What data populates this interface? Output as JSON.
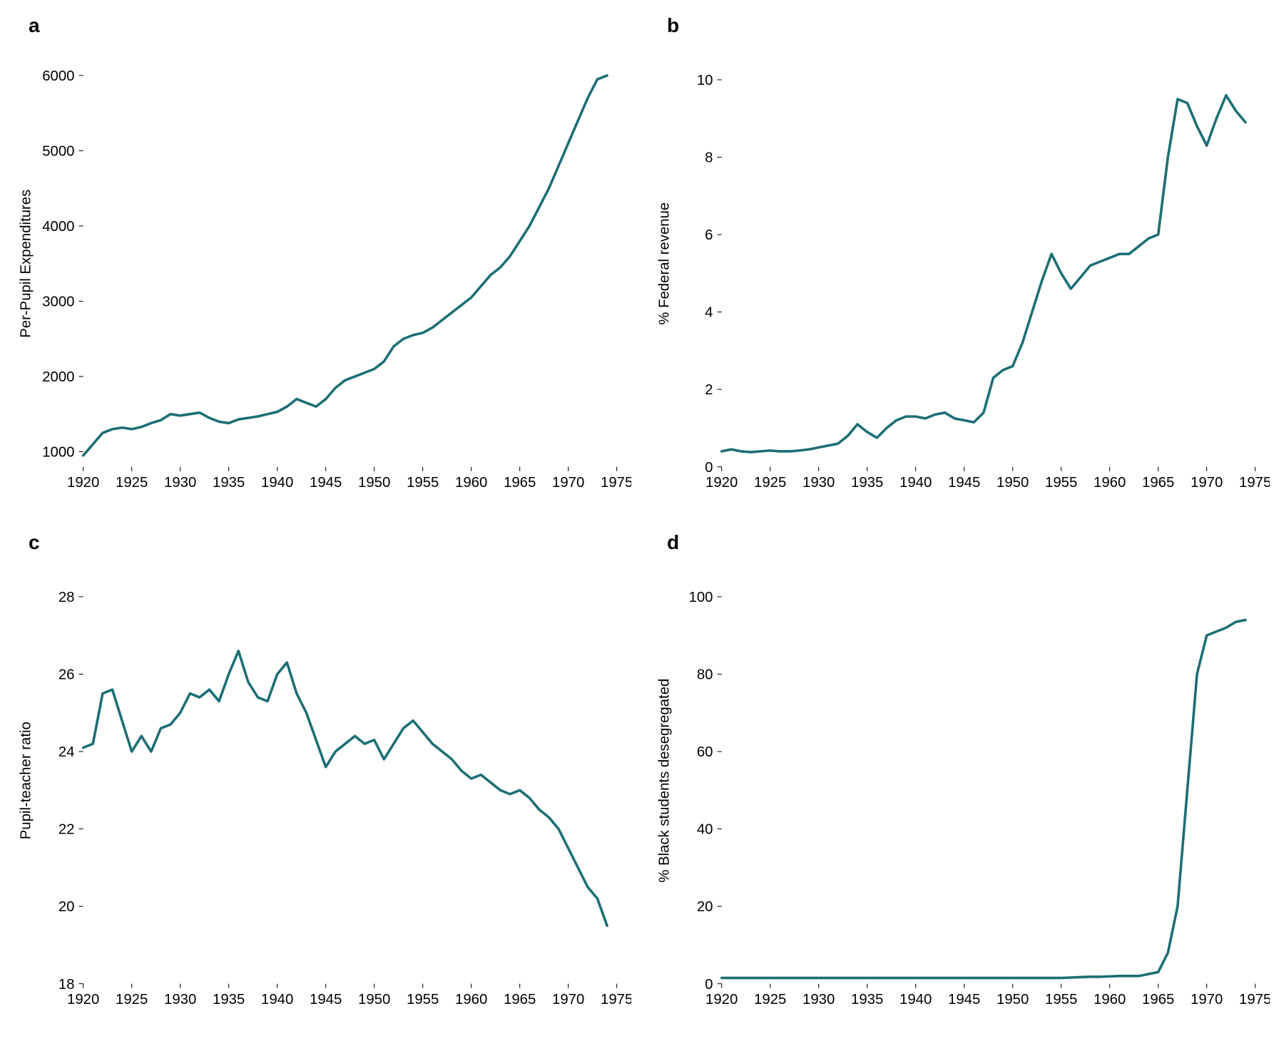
{
  "colors": {
    "line": "#1b6e75",
    "axis": "#000000",
    "background": "#ffffff",
    "text": "#000000"
  },
  "typography": {
    "panel_label_fontsize": 28,
    "axis_fontsize": 20,
    "ylabel_fontsize": 20,
    "font_family": "Arial, Helvetica, sans-serif"
  },
  "layout": {
    "panels": "2x2",
    "line_width": 3.5
  },
  "panels": {
    "a": {
      "label": "a",
      "type": "line",
      "ylabel": "Per-Pupil Expenditures",
      "xlim": [
        1920,
        1975
      ],
      "ylim": [
        800,
        6200
      ],
      "xticks": [
        1920,
        1925,
        1930,
        1935,
        1940,
        1945,
        1950,
        1955,
        1960,
        1965,
        1970,
        1975
      ],
      "yticks": [
        1000,
        2000,
        3000,
        4000,
        5000,
        6000
      ],
      "data": [
        [
          1920,
          950
        ],
        [
          1921,
          1100
        ],
        [
          1922,
          1250
        ],
        [
          1923,
          1300
        ],
        [
          1924,
          1320
        ],
        [
          1925,
          1300
        ],
        [
          1926,
          1330
        ],
        [
          1927,
          1380
        ],
        [
          1928,
          1420
        ],
        [
          1929,
          1500
        ],
        [
          1930,
          1480
        ],
        [
          1931,
          1500
        ],
        [
          1932,
          1520
        ],
        [
          1933,
          1450
        ],
        [
          1934,
          1400
        ],
        [
          1935,
          1380
        ],
        [
          1936,
          1430
        ],
        [
          1937,
          1450
        ],
        [
          1938,
          1470
        ],
        [
          1939,
          1500
        ],
        [
          1940,
          1530
        ],
        [
          1941,
          1600
        ],
        [
          1942,
          1700
        ],
        [
          1943,
          1650
        ],
        [
          1944,
          1600
        ],
        [
          1945,
          1700
        ],
        [
          1946,
          1850
        ],
        [
          1947,
          1950
        ],
        [
          1948,
          2000
        ],
        [
          1949,
          2050
        ],
        [
          1950,
          2100
        ],
        [
          1951,
          2200
        ],
        [
          1952,
          2400
        ],
        [
          1953,
          2500
        ],
        [
          1954,
          2550
        ],
        [
          1955,
          2580
        ],
        [
          1956,
          2650
        ],
        [
          1957,
          2750
        ],
        [
          1958,
          2850
        ],
        [
          1959,
          2950
        ],
        [
          1960,
          3050
        ],
        [
          1961,
          3200
        ],
        [
          1962,
          3350
        ],
        [
          1963,
          3450
        ],
        [
          1964,
          3600
        ],
        [
          1965,
          3800
        ],
        [
          1966,
          4000
        ],
        [
          1967,
          4250
        ],
        [
          1968,
          4500
        ],
        [
          1969,
          4800
        ],
        [
          1970,
          5100
        ],
        [
          1971,
          5400
        ],
        [
          1972,
          5700
        ],
        [
          1973,
          5950
        ],
        [
          1974,
          6000
        ]
      ]
    },
    "b": {
      "label": "b",
      "type": "line",
      "ylabel": "% Federal revenue",
      "xlim": [
        1920,
        1975
      ],
      "ylim": [
        0,
        10.5
      ],
      "xticks": [
        1920,
        1925,
        1930,
        1935,
        1940,
        1945,
        1950,
        1955,
        1960,
        1965,
        1970,
        1975
      ],
      "yticks": [
        0,
        2,
        4,
        6,
        8,
        10
      ],
      "data": [
        [
          1920,
          0.4
        ],
        [
          1921,
          0.45
        ],
        [
          1922,
          0.4
        ],
        [
          1923,
          0.38
        ],
        [
          1924,
          0.4
        ],
        [
          1925,
          0.42
        ],
        [
          1926,
          0.4
        ],
        [
          1927,
          0.4
        ],
        [
          1928,
          0.42
        ],
        [
          1929,
          0.45
        ],
        [
          1930,
          0.5
        ],
        [
          1931,
          0.55
        ],
        [
          1932,
          0.6
        ],
        [
          1933,
          0.8
        ],
        [
          1934,
          1.1
        ],
        [
          1935,
          0.9
        ],
        [
          1936,
          0.75
        ],
        [
          1937,
          1.0
        ],
        [
          1938,
          1.2
        ],
        [
          1939,
          1.3
        ],
        [
          1940,
          1.3
        ],
        [
          1941,
          1.25
        ],
        [
          1942,
          1.35
        ],
        [
          1943,
          1.4
        ],
        [
          1944,
          1.25
        ],
        [
          1945,
          1.2
        ],
        [
          1946,
          1.15
        ],
        [
          1947,
          1.4
        ],
        [
          1948,
          2.3
        ],
        [
          1949,
          2.5
        ],
        [
          1950,
          2.6
        ],
        [
          1951,
          3.2
        ],
        [
          1952,
          4.0
        ],
        [
          1953,
          4.8
        ],
        [
          1954,
          5.5
        ],
        [
          1955,
          5.0
        ],
        [
          1956,
          4.6
        ],
        [
          1957,
          4.9
        ],
        [
          1958,
          5.2
        ],
        [
          1959,
          5.3
        ],
        [
          1960,
          5.4
        ],
        [
          1961,
          5.5
        ],
        [
          1962,
          5.5
        ],
        [
          1963,
          5.7
        ],
        [
          1964,
          5.9
        ],
        [
          1965,
          6.0
        ],
        [
          1966,
          8.0
        ],
        [
          1967,
          9.5
        ],
        [
          1968,
          9.4
        ],
        [
          1969,
          8.8
        ],
        [
          1970,
          8.3
        ],
        [
          1971,
          9.0
        ],
        [
          1972,
          9.6
        ],
        [
          1973,
          9.2
        ],
        [
          1974,
          8.9
        ]
      ]
    },
    "c": {
      "label": "c",
      "type": "line",
      "ylabel": "Pupil-teacher ratio",
      "xlim": [
        1920,
        1975
      ],
      "ylim": [
        18,
        28.5
      ],
      "xticks": [
        1920,
        1925,
        1930,
        1935,
        1940,
        1945,
        1950,
        1955,
        1960,
        1965,
        1970,
        1975
      ],
      "yticks": [
        18,
        20,
        22,
        24,
        26,
        28
      ],
      "data": [
        [
          1920,
          24.1
        ],
        [
          1921,
          24.2
        ],
        [
          1922,
          25.5
        ],
        [
          1923,
          25.6
        ],
        [
          1924,
          24.8
        ],
        [
          1925,
          24.0
        ],
        [
          1926,
          24.4
        ],
        [
          1927,
          24.0
        ],
        [
          1928,
          24.6
        ],
        [
          1929,
          24.7
        ],
        [
          1930,
          25.0
        ],
        [
          1931,
          25.5
        ],
        [
          1932,
          25.4
        ],
        [
          1933,
          25.6
        ],
        [
          1934,
          25.3
        ],
        [
          1935,
          26.0
        ],
        [
          1936,
          26.6
        ],
        [
          1937,
          25.8
        ],
        [
          1938,
          25.4
        ],
        [
          1939,
          25.3
        ],
        [
          1940,
          26.0
        ],
        [
          1941,
          26.3
        ],
        [
          1942,
          25.5
        ],
        [
          1943,
          25.0
        ],
        [
          1944,
          24.3
        ],
        [
          1945,
          23.6
        ],
        [
          1946,
          24.0
        ],
        [
          1947,
          24.2
        ],
        [
          1948,
          24.4
        ],
        [
          1949,
          24.2
        ],
        [
          1950,
          24.3
        ],
        [
          1951,
          23.8
        ],
        [
          1952,
          24.2
        ],
        [
          1953,
          24.6
        ],
        [
          1954,
          24.8
        ],
        [
          1955,
          24.5
        ],
        [
          1956,
          24.2
        ],
        [
          1957,
          24.0
        ],
        [
          1958,
          23.8
        ],
        [
          1959,
          23.5
        ],
        [
          1960,
          23.3
        ],
        [
          1961,
          23.4
        ],
        [
          1962,
          23.2
        ],
        [
          1963,
          23.0
        ],
        [
          1964,
          22.9
        ],
        [
          1965,
          23.0
        ],
        [
          1966,
          22.8
        ],
        [
          1967,
          22.5
        ],
        [
          1968,
          22.3
        ],
        [
          1969,
          22.0
        ],
        [
          1970,
          21.5
        ],
        [
          1971,
          21.0
        ],
        [
          1972,
          20.5
        ],
        [
          1973,
          20.2
        ],
        [
          1974,
          19.5
        ]
      ]
    },
    "d": {
      "label": "d",
      "type": "line",
      "ylabel": "% Black students desegregated",
      "xlim": [
        1920,
        1975
      ],
      "ylim": [
        0,
        105
      ],
      "xticks": [
        1920,
        1925,
        1930,
        1935,
        1940,
        1945,
        1950,
        1955,
        1960,
        1965,
        1970,
        1975
      ],
      "yticks": [
        0,
        20,
        40,
        60,
        80,
        100
      ],
      "data": [
        [
          1920,
          1.5
        ],
        [
          1921,
          1.5
        ],
        [
          1922,
          1.5
        ],
        [
          1923,
          1.5
        ],
        [
          1924,
          1.5
        ],
        [
          1925,
          1.5
        ],
        [
          1926,
          1.5
        ],
        [
          1927,
          1.5
        ],
        [
          1928,
          1.5
        ],
        [
          1929,
          1.5
        ],
        [
          1930,
          1.5
        ],
        [
          1931,
          1.5
        ],
        [
          1932,
          1.5
        ],
        [
          1933,
          1.5
        ],
        [
          1934,
          1.5
        ],
        [
          1935,
          1.5
        ],
        [
          1936,
          1.5
        ],
        [
          1937,
          1.5
        ],
        [
          1938,
          1.5
        ],
        [
          1939,
          1.5
        ],
        [
          1940,
          1.5
        ],
        [
          1941,
          1.5
        ],
        [
          1942,
          1.5
        ],
        [
          1943,
          1.5
        ],
        [
          1944,
          1.5
        ],
        [
          1945,
          1.5
        ],
        [
          1946,
          1.5
        ],
        [
          1947,
          1.5
        ],
        [
          1948,
          1.5
        ],
        [
          1949,
          1.5
        ],
        [
          1950,
          1.5
        ],
        [
          1951,
          1.5
        ],
        [
          1952,
          1.5
        ],
        [
          1953,
          1.5
        ],
        [
          1954,
          1.5
        ],
        [
          1955,
          1.5
        ],
        [
          1956,
          1.6
        ],
        [
          1957,
          1.7
        ],
        [
          1958,
          1.8
        ],
        [
          1959,
          1.8
        ],
        [
          1960,
          1.9
        ],
        [
          1961,
          2.0
        ],
        [
          1962,
          2.0
        ],
        [
          1963,
          2.0
        ],
        [
          1964,
          2.5
        ],
        [
          1965,
          3.0
        ],
        [
          1966,
          8.0
        ],
        [
          1967,
          20.0
        ],
        [
          1968,
          50.0
        ],
        [
          1969,
          80.0
        ],
        [
          1970,
          90.0
        ],
        [
          1971,
          91.0
        ],
        [
          1972,
          92.0
        ],
        [
          1973,
          93.5
        ],
        [
          1974,
          94.0
        ]
      ]
    }
  }
}
